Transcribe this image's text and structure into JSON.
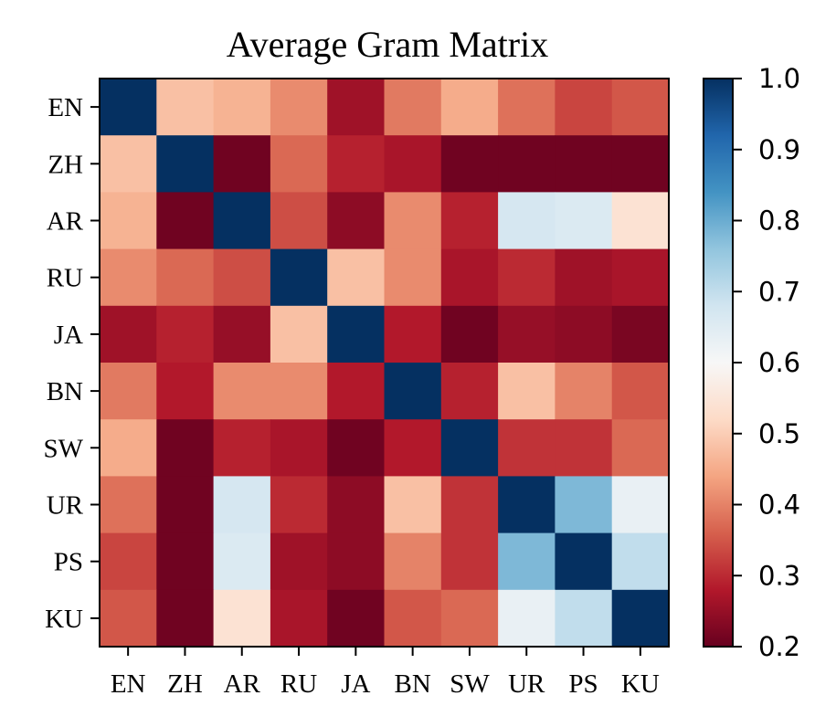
{
  "chart_data": {
    "type": "heatmap",
    "title": "Average Gram Matrix",
    "xlabel": "",
    "ylabel": "",
    "rows": [
      "EN",
      "ZH",
      "AR",
      "RU",
      "JA",
      "BN",
      "SW",
      "UR",
      "PS",
      "KU"
    ],
    "cols": [
      "EN",
      "ZH",
      "AR",
      "RU",
      "JA",
      "BN",
      "SW",
      "UR",
      "PS",
      "KU"
    ],
    "values": [
      [
        1.0,
        0.48,
        0.46,
        0.41,
        0.26,
        0.39,
        0.45,
        0.38,
        0.33,
        0.35
      ],
      [
        0.48,
        1.0,
        0.21,
        0.37,
        0.29,
        0.27,
        0.21,
        0.21,
        0.21,
        0.21
      ],
      [
        0.46,
        0.21,
        1.0,
        0.34,
        0.24,
        0.41,
        0.29,
        0.67,
        0.66,
        0.54
      ],
      [
        0.41,
        0.37,
        0.34,
        1.0,
        0.48,
        0.41,
        0.27,
        0.3,
        0.26,
        0.27
      ],
      [
        0.26,
        0.29,
        0.25,
        0.48,
        1.0,
        0.28,
        0.21,
        0.25,
        0.24,
        0.22
      ],
      [
        0.39,
        0.28,
        0.41,
        0.41,
        0.28,
        1.0,
        0.29,
        0.48,
        0.4,
        0.35
      ],
      [
        0.45,
        0.21,
        0.29,
        0.27,
        0.21,
        0.28,
        1.0,
        0.31,
        0.31,
        0.37
      ],
      [
        0.38,
        0.21,
        0.67,
        0.3,
        0.24,
        0.48,
        0.31,
        1.0,
        0.78,
        0.63
      ],
      [
        0.33,
        0.21,
        0.66,
        0.26,
        0.24,
        0.4,
        0.31,
        0.78,
        1.0,
        0.7
      ],
      [
        0.35,
        0.21,
        0.54,
        0.27,
        0.21,
        0.35,
        0.37,
        0.63,
        0.7,
        1.0
      ]
    ],
    "colormap": "RdBu",
    "vmin": 0.2,
    "vmax": 1.0,
    "colorbar_ticks": [
      "0.2",
      "0.3",
      "0.4",
      "0.5",
      "0.6",
      "0.7",
      "0.8",
      "0.9",
      "1.0"
    ],
    "colors": [
      "#67001f",
      "#b2182b",
      "#d6604d",
      "#f4a582",
      "#fddbc7",
      "#f7f7f7",
      "#d1e5f0",
      "#92c5de",
      "#4393c3",
      "#2166ac",
      "#053061"
    ]
  }
}
